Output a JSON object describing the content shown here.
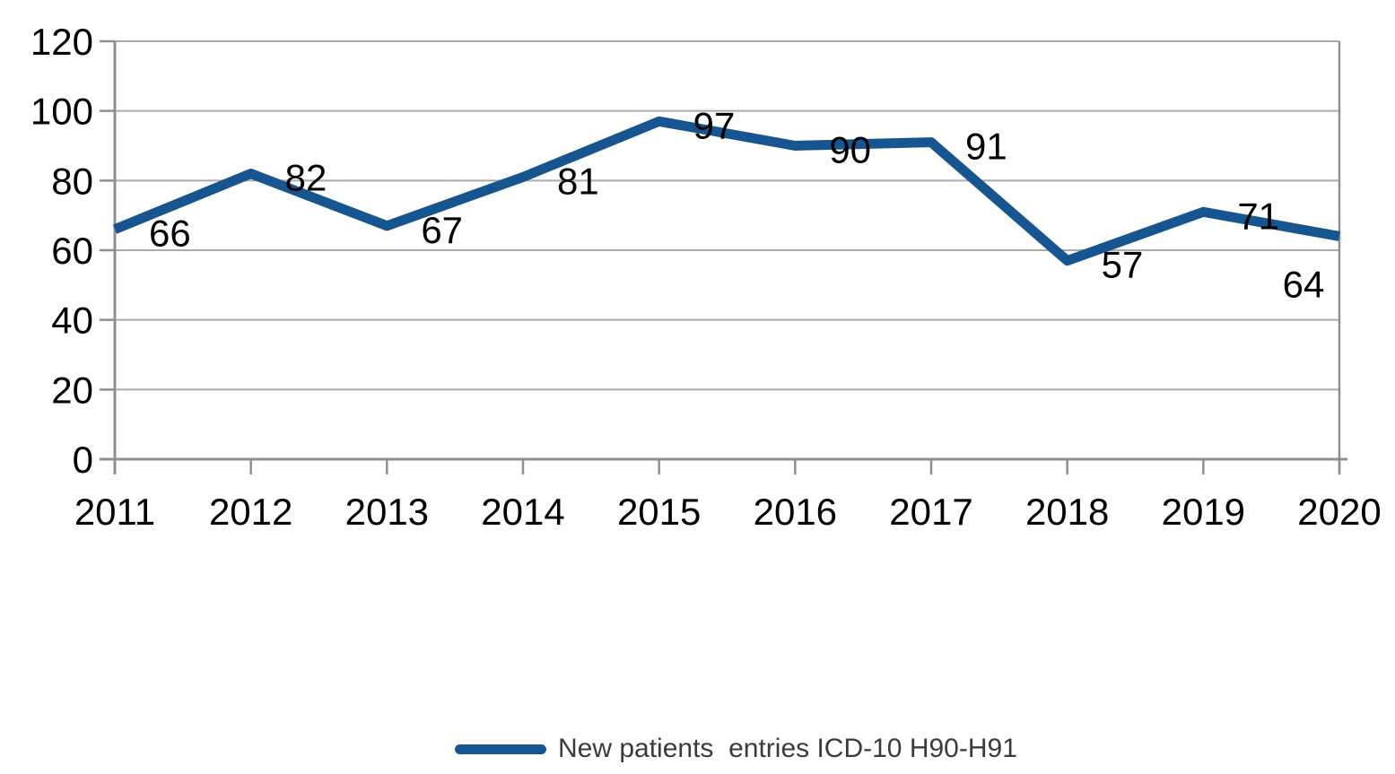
{
  "chart_data": {
    "type": "line",
    "title": "",
    "xlabel": "",
    "ylabel": "",
    "categories": [
      "2011",
      "2012",
      "2013",
      "2014",
      "2015",
      "2016",
      "2017",
      "2018",
      "2019",
      "2020"
    ],
    "series": [
      {
        "name": "New patients  entries ICD-10 H90-H91",
        "values": [
          66,
          82,
          67,
          81,
          97,
          90,
          91,
          57,
          71,
          64
        ],
        "color": "#175591"
      }
    ],
    "yticks": [
      0,
      20,
      40,
      60,
      80,
      100,
      120
    ],
    "ylim": [
      0,
      120
    ],
    "grid": true,
    "data_labels": true,
    "legend_position": "bottom"
  },
  "colors": {
    "line": "#175591",
    "gridline": "#ababab",
    "axis": "#8f8f8f",
    "label_text": "#000000",
    "legend_text": "#3b3b3b",
    "background": "#ffffff"
  }
}
